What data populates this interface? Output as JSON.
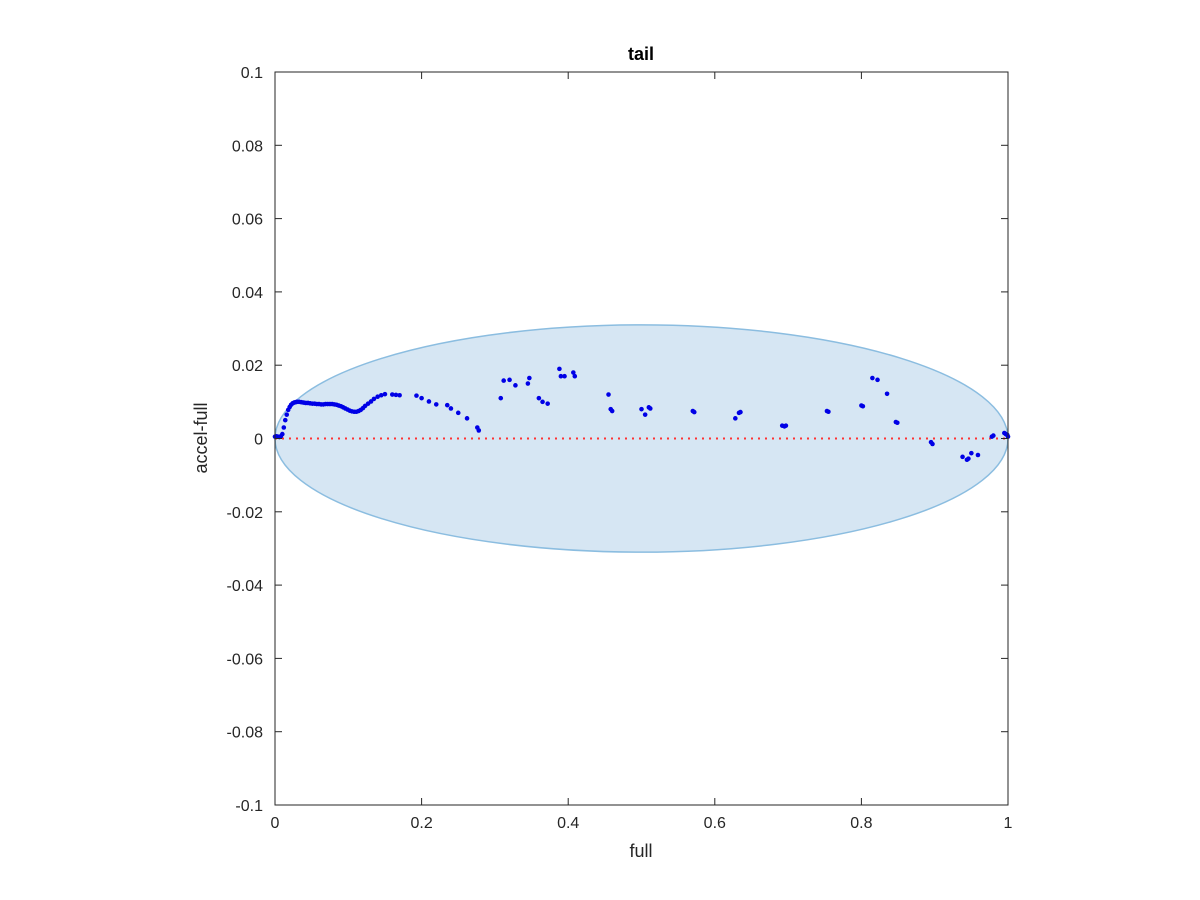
{
  "chart_data": {
    "type": "scatter",
    "title": "tail",
    "xlabel": "full",
    "ylabel": "accel-full",
    "xlim": [
      0,
      1
    ],
    "ylim": [
      -0.1,
      0.1
    ],
    "xticks": [
      0,
      0.2,
      0.4,
      0.6,
      0.8,
      1
    ],
    "xtick_labels": [
      "0",
      "0.2",
      "0.4",
      "0.6",
      "0.8",
      "1"
    ],
    "yticks": [
      0.1,
      0.08,
      0.06,
      0.04,
      0.02,
      0,
      -0.02,
      -0.04,
      -0.06,
      -0.08,
      -0.1
    ],
    "ytick_labels": [
      "0.1",
      "0.08",
      "0.06",
      "0.04",
      "0.02",
      "0",
      "-0.02",
      "-0.04",
      "-0.06",
      "-0.08",
      "-0.1"
    ],
    "grid": false,
    "colors": {
      "points": "#0000e6",
      "zero_line": "#ff3333",
      "ellipse_fill": "#d6e6f3",
      "ellipse_stroke": "#8bbde0",
      "axes": "#262626"
    },
    "zero_line": {
      "y": 0,
      "style": "dotted"
    },
    "ellipse": {
      "cx": 0.5,
      "cy": 0,
      "rx": 0.5,
      "ry": 0.031
    },
    "points": [
      {
        "x": 0.0,
        "y": 0.0005
      },
      {
        "x": 0.002,
        "y": 0.0006
      },
      {
        "x": 0.004,
        "y": 0.0005
      },
      {
        "x": 0.006,
        "y": 0.0004
      },
      {
        "x": 0.008,
        "y": 0.0006
      },
      {
        "x": 0.01,
        "y": 0.0012
      },
      {
        "x": 0.012,
        "y": 0.003
      },
      {
        "x": 0.014,
        "y": 0.005
      },
      {
        "x": 0.016,
        "y": 0.0065
      },
      {
        "x": 0.018,
        "y": 0.0078
      },
      {
        "x": 0.02,
        "y": 0.0086
      },
      {
        "x": 0.022,
        "y": 0.0092
      },
      {
        "x": 0.024,
        "y": 0.0096
      },
      {
        "x": 0.026,
        "y": 0.0098
      },
      {
        "x": 0.028,
        "y": 0.0099
      },
      {
        "x": 0.03,
        "y": 0.01
      },
      {
        "x": 0.033,
        "y": 0.01
      },
      {
        "x": 0.036,
        "y": 0.0099
      },
      {
        "x": 0.039,
        "y": 0.0098
      },
      {
        "x": 0.042,
        "y": 0.0097
      },
      {
        "x": 0.045,
        "y": 0.0097
      },
      {
        "x": 0.048,
        "y": 0.0096
      },
      {
        "x": 0.051,
        "y": 0.0095
      },
      {
        "x": 0.054,
        "y": 0.0095
      },
      {
        "x": 0.057,
        "y": 0.0094
      },
      {
        "x": 0.06,
        "y": 0.0094
      },
      {
        "x": 0.063,
        "y": 0.0093
      },
      {
        "x": 0.066,
        "y": 0.0093
      },
      {
        "x": 0.069,
        "y": 0.0094
      },
      {
        "x": 0.072,
        "y": 0.0094
      },
      {
        "x": 0.075,
        "y": 0.0094
      },
      {
        "x": 0.078,
        "y": 0.0094
      },
      {
        "x": 0.081,
        "y": 0.0093
      },
      {
        "x": 0.084,
        "y": 0.0092
      },
      {
        "x": 0.087,
        "y": 0.009
      },
      {
        "x": 0.09,
        "y": 0.0088
      },
      {
        "x": 0.093,
        "y": 0.0085
      },
      {
        "x": 0.096,
        "y": 0.0082
      },
      {
        "x": 0.099,
        "y": 0.0079
      },
      {
        "x": 0.102,
        "y": 0.0076
      },
      {
        "x": 0.105,
        "y": 0.0074
      },
      {
        "x": 0.108,
        "y": 0.0073
      },
      {
        "x": 0.111,
        "y": 0.0073
      },
      {
        "x": 0.114,
        "y": 0.0075
      },
      {
        "x": 0.117,
        "y": 0.0078
      },
      {
        "x": 0.12,
        "y": 0.0083
      },
      {
        "x": 0.123,
        "y": 0.0089
      },
      {
        "x": 0.127,
        "y": 0.0095
      },
      {
        "x": 0.131,
        "y": 0.0101
      },
      {
        "x": 0.135,
        "y": 0.0108
      },
      {
        "x": 0.14,
        "y": 0.0114
      },
      {
        "x": 0.145,
        "y": 0.0118
      },
      {
        "x": 0.15,
        "y": 0.0121
      },
      {
        "x": 0.16,
        "y": 0.012
      },
      {
        "x": 0.165,
        "y": 0.0119
      },
      {
        "x": 0.17,
        "y": 0.0118
      },
      {
        "x": 0.193,
        "y": 0.0117
      },
      {
        "x": 0.2,
        "y": 0.011
      },
      {
        "x": 0.21,
        "y": 0.0101
      },
      {
        "x": 0.22,
        "y": 0.0093
      },
      {
        "x": 0.235,
        "y": 0.0091
      },
      {
        "x": 0.24,
        "y": 0.0082
      },
      {
        "x": 0.25,
        "y": 0.007
      },
      {
        "x": 0.262,
        "y": 0.0055
      },
      {
        "x": 0.276,
        "y": 0.003
      },
      {
        "x": 0.278,
        "y": 0.0022
      },
      {
        "x": 0.308,
        "y": 0.011
      },
      {
        "x": 0.312,
        "y": 0.0158
      },
      {
        "x": 0.32,
        "y": 0.016
      },
      {
        "x": 0.328,
        "y": 0.0145
      },
      {
        "x": 0.345,
        "y": 0.015
      },
      {
        "x": 0.347,
        "y": 0.0165
      },
      {
        "x": 0.36,
        "y": 0.011
      },
      {
        "x": 0.365,
        "y": 0.01
      },
      {
        "x": 0.372,
        "y": 0.0095
      },
      {
        "x": 0.388,
        "y": 0.019
      },
      {
        "x": 0.39,
        "y": 0.017
      },
      {
        "x": 0.395,
        "y": 0.017
      },
      {
        "x": 0.407,
        "y": 0.018
      },
      {
        "x": 0.409,
        "y": 0.017
      },
      {
        "x": 0.455,
        "y": 0.012
      },
      {
        "x": 0.458,
        "y": 0.008
      },
      {
        "x": 0.46,
        "y": 0.0075
      },
      {
        "x": 0.5,
        "y": 0.008
      },
      {
        "x": 0.505,
        "y": 0.0065
      },
      {
        "x": 0.51,
        "y": 0.0085
      },
      {
        "x": 0.512,
        "y": 0.0082
      },
      {
        "x": 0.57,
        "y": 0.0075
      },
      {
        "x": 0.572,
        "y": 0.0072
      },
      {
        "x": 0.628,
        "y": 0.0055
      },
      {
        "x": 0.633,
        "y": 0.007
      },
      {
        "x": 0.635,
        "y": 0.0072
      },
      {
        "x": 0.692,
        "y": 0.0035
      },
      {
        "x": 0.695,
        "y": 0.0033
      },
      {
        "x": 0.697,
        "y": 0.0035
      },
      {
        "x": 0.753,
        "y": 0.0075
      },
      {
        "x": 0.755,
        "y": 0.0073
      },
      {
        "x": 0.8,
        "y": 0.009
      },
      {
        "x": 0.802,
        "y": 0.0088
      },
      {
        "x": 0.815,
        "y": 0.0165
      },
      {
        "x": 0.822,
        "y": 0.016
      },
      {
        "x": 0.835,
        "y": 0.0122
      },
      {
        "x": 0.847,
        "y": 0.0045
      },
      {
        "x": 0.849,
        "y": 0.0043
      },
      {
        "x": 0.895,
        "y": -0.001
      },
      {
        "x": 0.897,
        "y": -0.0015
      },
      {
        "x": 0.938,
        "y": -0.005
      },
      {
        "x": 0.944,
        "y": -0.0058
      },
      {
        "x": 0.946,
        "y": -0.0055
      },
      {
        "x": 0.95,
        "y": -0.004
      },
      {
        "x": 0.959,
        "y": -0.0045
      },
      {
        "x": 0.978,
        "y": 0.0005
      },
      {
        "x": 0.98,
        "y": 0.0008
      },
      {
        "x": 0.995,
        "y": 0.0015
      },
      {
        "x": 0.997,
        "y": 0.0012
      },
      {
        "x": 0.999,
        "y": 0.001
      },
      {
        "x": 1.0,
        "y": 0.0005
      }
    ]
  }
}
